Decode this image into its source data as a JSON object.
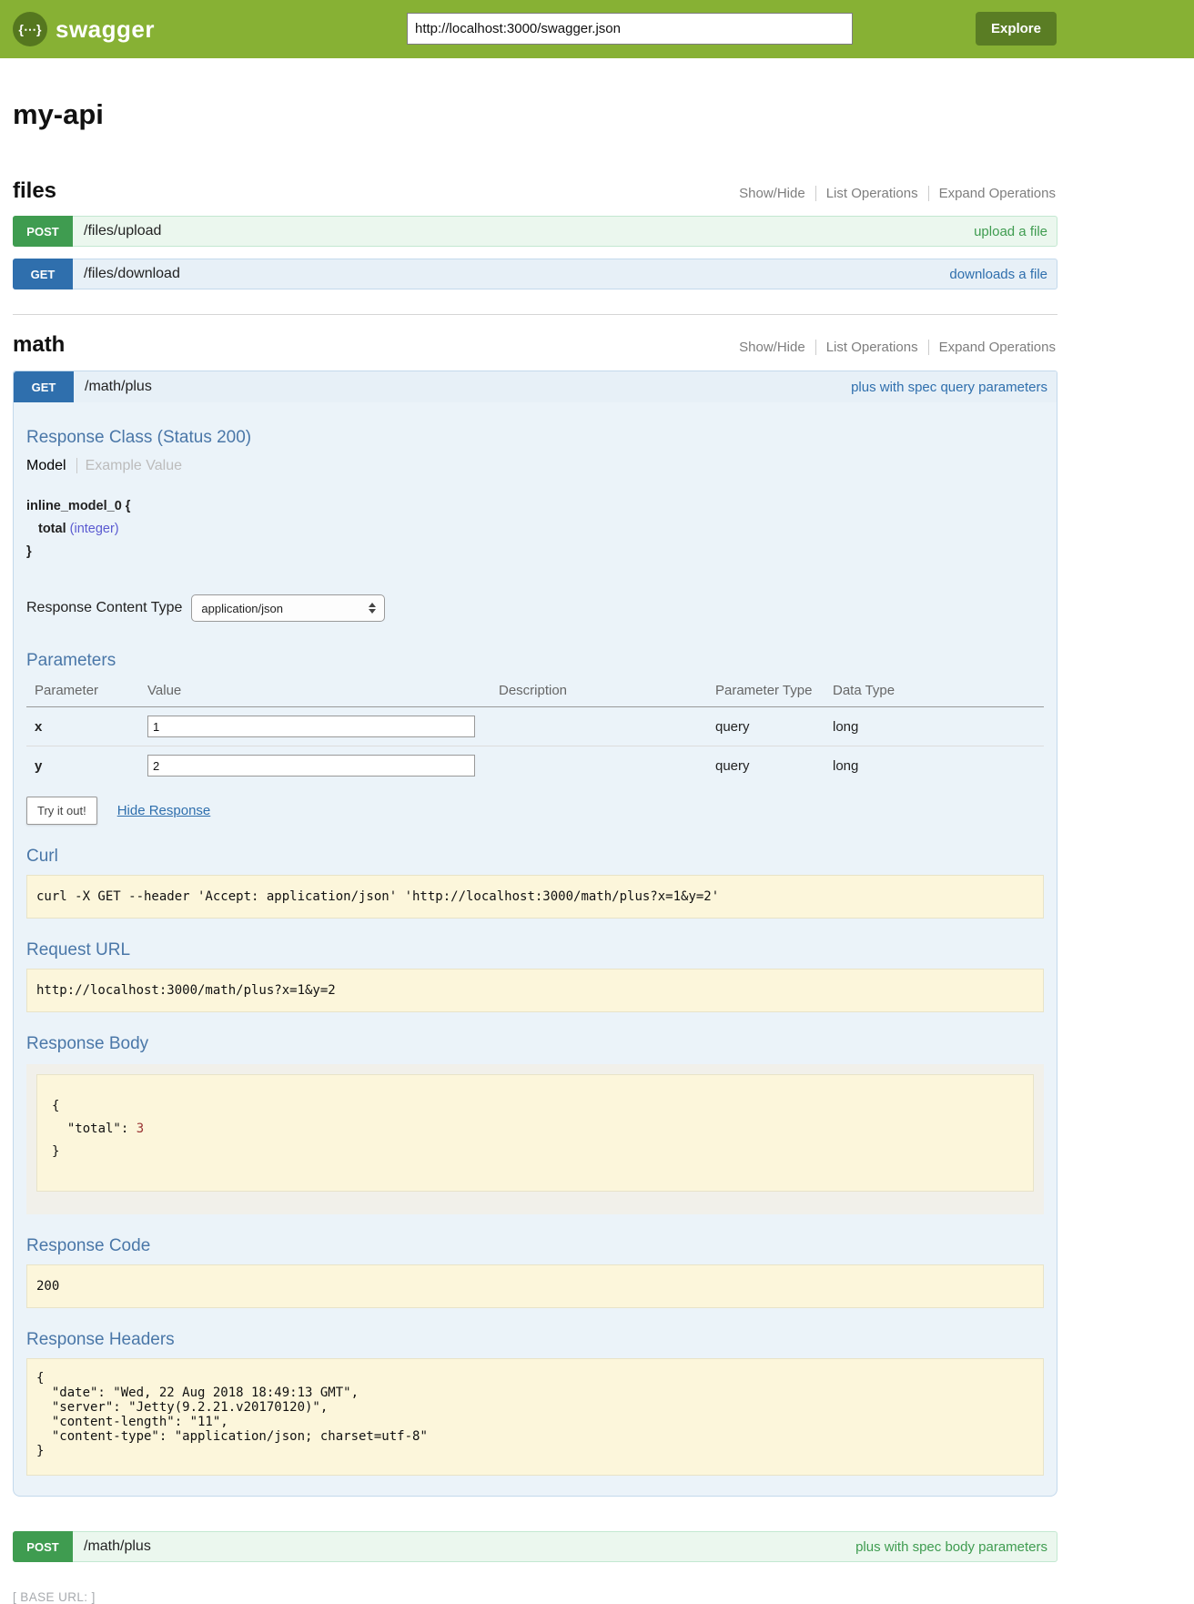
{
  "colors": {
    "header_green": "#87b134",
    "explore_button_green": "#5a7d24",
    "post_badge_green": "#3f9c50",
    "post_row_bg": "#ebf7ee",
    "get_badge_blue": "#2f6fad",
    "get_row_bg": "#e7f0f7",
    "expanded_panel_bg": "#ebf3f9",
    "panel_heading_blue": "#4a77a8",
    "code_block_yellow": "#fcf6db",
    "prop_type_purple": "#5a5ad1",
    "json_number_red": "#993333"
  },
  "header": {
    "logo_icon": "{⋯}",
    "logo_text": "swagger",
    "url_value": "http://localhost:3000/swagger.json",
    "explore_label": "Explore"
  },
  "api_title": "my-api",
  "controls": {
    "show_hide": "Show/Hide",
    "list_operations": "List Operations",
    "expand_operations": "Expand Operations"
  },
  "files_section": {
    "title": "files",
    "post_upload": {
      "method": "POST",
      "path": "/files/upload",
      "summary": "upload a file"
    },
    "get_download": {
      "method": "GET",
      "path": "/files/download",
      "summary": "downloads a file"
    }
  },
  "math_section": {
    "title": "math",
    "get_plus": {
      "method": "GET",
      "path": "/math/plus",
      "summary": "plus with spec query parameters",
      "response_class_heading": "Response Class (Status 200)",
      "tab_model": "Model",
      "tab_example": "Example Value",
      "model": {
        "name": "inline_model_0 {",
        "prop_name": "total",
        "prop_type": "(integer)",
        "close_brace": "}"
      },
      "response_content_type_label": "Response Content Type",
      "content_type": "application/json",
      "parameters_heading": "Parameters",
      "table": {
        "col_parameter": "Parameter",
        "col_value": "Value",
        "col_description": "Description",
        "col_param_type": "Parameter Type",
        "col_data_type": "Data Type"
      },
      "params": [
        {
          "name": "x",
          "value": "1",
          "description": "",
          "param_type": "query",
          "data_type": "long"
        },
        {
          "name": "y",
          "value": "2",
          "description": "",
          "param_type": "query",
          "data_type": "long"
        }
      ],
      "try_it_out": "Try it out!",
      "hide_response": "Hide Response",
      "curl_heading": "Curl",
      "curl_command": "curl -X GET --header 'Accept: application/json' 'http://localhost:3000/math/plus?x=1&y=2'",
      "request_url_heading": "Request URL",
      "request_url": "http://localhost:3000/math/plus?x=1&y=2",
      "response_body_heading": "Response Body",
      "response_body": {
        "open": "{",
        "key": "\"total\"",
        "sep": ": ",
        "value": "3",
        "close": "}"
      },
      "response_code_heading": "Response Code",
      "response_code": "200",
      "response_headers_heading": "Response Headers",
      "response_headers_json": "{\n  \"date\": \"Wed, 22 Aug 2018 18:49:13 GMT\",\n  \"server\": \"Jetty(9.2.21.v20170120)\",\n  \"content-length\": \"11\",\n  \"content-type\": \"application/json; charset=utf-8\"\n}"
    },
    "post_plus": {
      "method": "POST",
      "path": "/math/plus",
      "summary": "plus with spec body parameters"
    }
  },
  "footer": {
    "base_url": "[ BASE URL: ]"
  }
}
